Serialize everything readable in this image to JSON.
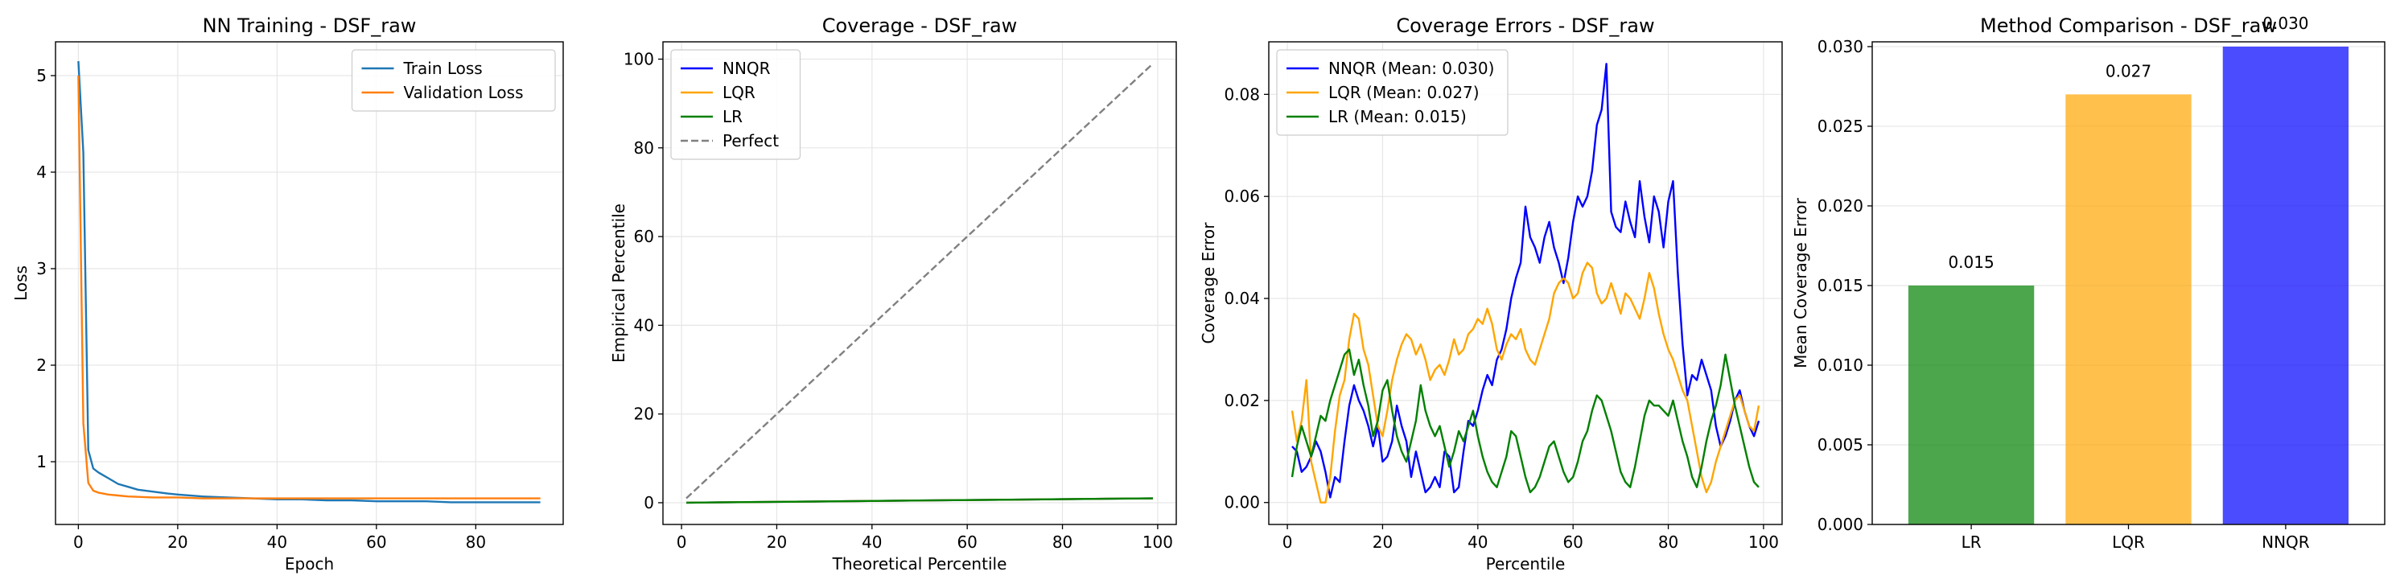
{
  "chart_data": [
    {
      "type": "line",
      "title": "NN Training - DSF_raw",
      "xlabel": "Epoch",
      "ylabel": "Loss",
      "xlim": [
        -4.6,
        97.6
      ],
      "ylim": [
        0.35,
        5.35
      ],
      "xticks": [
        0,
        20,
        40,
        60,
        80
      ],
      "yticks": [
        1,
        2,
        3,
        4,
        5
      ],
      "grid": true,
      "legend": "top-right",
      "series": [
        {
          "name": "Train Loss",
          "color": "#1f77b4",
          "x": [
            0,
            1,
            2,
            3,
            4,
            5,
            6,
            7,
            8,
            10,
            12,
            15,
            18,
            20,
            25,
            30,
            35,
            40,
            45,
            50,
            55,
            60,
            65,
            70,
            75,
            80,
            85,
            90,
            93
          ],
          "y": [
            5.15,
            4.2,
            1.12,
            0.93,
            0.89,
            0.86,
            0.83,
            0.8,
            0.77,
            0.74,
            0.71,
            0.69,
            0.67,
            0.66,
            0.64,
            0.63,
            0.62,
            0.61,
            0.61,
            0.6,
            0.6,
            0.59,
            0.59,
            0.59,
            0.58,
            0.58,
            0.58,
            0.58,
            0.58
          ]
        },
        {
          "name": "Validation Loss",
          "color": "#ff7f0e",
          "x": [
            0,
            1,
            2,
            3,
            4,
            5,
            6,
            8,
            10,
            15,
            20,
            25,
            30,
            40,
            50,
            60,
            70,
            80,
            90,
            93
          ],
          "y": [
            5.0,
            1.4,
            0.78,
            0.7,
            0.68,
            0.67,
            0.66,
            0.65,
            0.64,
            0.63,
            0.63,
            0.62,
            0.62,
            0.62,
            0.62,
            0.62,
            0.62,
            0.62,
            0.62,
            0.62
          ]
        }
      ]
    },
    {
      "type": "line",
      "title": "Coverage - DSF_raw",
      "xlabel": "Theoretical Percentile",
      "ylabel": "Empirical Percentile",
      "xlim": [
        -3.9,
        103.9
      ],
      "ylim": [
        -4.9,
        103.9
      ],
      "xticks": [
        0,
        20,
        40,
        60,
        80,
        100
      ],
      "yticks": [
        0,
        20,
        40,
        60,
        80,
        100
      ],
      "grid": true,
      "legend": "top-left",
      "series": [
        {
          "name": "NNQR",
          "color": "#0000ff",
          "dash": false,
          "x": [
            1,
            99
          ],
          "y": [
            0.01,
            0.99
          ]
        },
        {
          "name": "LQR",
          "color": "#ffa500",
          "dash": false,
          "x": [
            1,
            99
          ],
          "y": [
            0.01,
            0.99
          ]
        },
        {
          "name": "LR",
          "color": "#008000",
          "dash": false,
          "x": [
            1,
            99
          ],
          "y": [
            0.01,
            0.99
          ]
        },
        {
          "name": "Perfect",
          "color": "#808080",
          "dash": true,
          "x": [
            1,
            99
          ],
          "y": [
            1,
            99
          ]
        }
      ]
    },
    {
      "type": "line",
      "title": "Coverage Errors - DSF_raw",
      "xlabel": "Percentile",
      "ylabel": "Coverage Error",
      "xlim": [
        -3.9,
        103.9
      ],
      "ylim": [
        -0.0043,
        0.0903
      ],
      "xticks": [
        0,
        20,
        40,
        60,
        80,
        100
      ],
      "yticks": [
        0.0,
        0.02,
        0.04,
        0.06,
        0.08
      ],
      "yticklabels": [
        "0.00",
        "0.02",
        "0.04",
        "0.06",
        "0.08"
      ],
      "grid": true,
      "legend": "top-left",
      "series": [
        {
          "name": "NNQR (Mean: 0.030)",
          "color": "#0000ff",
          "x": [
            1,
            2,
            3,
            4,
            5,
            6,
            7,
            8,
            9,
            10,
            11,
            12,
            13,
            14,
            15,
            16,
            17,
            18,
            19,
            20,
            21,
            22,
            23,
            24,
            25,
            26,
            27,
            28,
            29,
            30,
            31,
            32,
            33,
            34,
            35,
            36,
            37,
            38,
            39,
            40,
            41,
            42,
            43,
            44,
            45,
            46,
            47,
            48,
            49,
            50,
            51,
            52,
            53,
            54,
            55,
            56,
            57,
            58,
            59,
            60,
            61,
            62,
            63,
            64,
            65,
            66,
            67,
            68,
            69,
            70,
            71,
            72,
            73,
            74,
            75,
            76,
            77,
            78,
            79,
            80,
            81,
            82,
            83,
            84,
            85,
            86,
            87,
            88,
            89,
            90,
            91,
            92,
            93,
            94,
            95,
            96,
            97,
            98,
            99
          ],
          "y": [
            0.011,
            0.01,
            0.006,
            0.007,
            0.009,
            0.012,
            0.01,
            0.006,
            0.001,
            0.005,
            0.004,
            0.012,
            0.019,
            0.023,
            0.02,
            0.018,
            0.015,
            0.011,
            0.015,
            0.008,
            0.009,
            0.012,
            0.019,
            0.015,
            0.012,
            0.005,
            0.01,
            0.006,
            0.002,
            0.003,
            0.005,
            0.003,
            0.01,
            0.009,
            0.002,
            0.003,
            0.01,
            0.016,
            0.015,
            0.018,
            0.022,
            0.025,
            0.023,
            0.028,
            0.03,
            0.034,
            0.04,
            0.044,
            0.047,
            0.058,
            0.052,
            0.05,
            0.047,
            0.052,
            0.055,
            0.05,
            0.047,
            0.043,
            0.048,
            0.055,
            0.06,
            0.058,
            0.06,
            0.065,
            0.074,
            0.077,
            0.086,
            0.057,
            0.054,
            0.053,
            0.059,
            0.055,
            0.052,
            0.063,
            0.056,
            0.051,
            0.06,
            0.057,
            0.05,
            0.059,
            0.063,
            0.045,
            0.031,
            0.021,
            0.025,
            0.024,
            0.028,
            0.025,
            0.022,
            0.015,
            0.011,
            0.013,
            0.016,
            0.02,
            0.022,
            0.018,
            0.015,
            0.013,
            0.016
          ]
        },
        {
          "name": "LQR (Mean: 0.027)",
          "color": "#ffa500",
          "x": [
            1,
            2,
            3,
            4,
            5,
            6,
            7,
            8,
            9,
            10,
            11,
            12,
            13,
            14,
            15,
            16,
            17,
            18,
            19,
            20,
            21,
            22,
            23,
            24,
            25,
            26,
            27,
            28,
            29,
            30,
            31,
            32,
            33,
            34,
            35,
            36,
            37,
            38,
            39,
            40,
            41,
            42,
            43,
            44,
            45,
            46,
            47,
            48,
            49,
            50,
            51,
            52,
            53,
            54,
            55,
            56,
            57,
            58,
            59,
            60,
            61,
            62,
            63,
            64,
            65,
            66,
            67,
            68,
            69,
            70,
            71,
            72,
            73,
            74,
            75,
            76,
            77,
            78,
            79,
            80,
            81,
            82,
            83,
            84,
            85,
            86,
            87,
            88,
            89,
            90,
            91,
            92,
            93,
            94,
            95,
            96,
            97,
            98,
            99
          ],
          "y": [
            0.018,
            0.012,
            0.016,
            0.024,
            0.008,
            0.004,
            0.0,
            0.0,
            0.005,
            0.014,
            0.021,
            0.024,
            0.032,
            0.037,
            0.036,
            0.03,
            0.027,
            0.021,
            0.015,
            0.013,
            0.018,
            0.024,
            0.028,
            0.031,
            0.033,
            0.032,
            0.029,
            0.031,
            0.028,
            0.024,
            0.026,
            0.027,
            0.025,
            0.028,
            0.032,
            0.029,
            0.03,
            0.033,
            0.034,
            0.036,
            0.035,
            0.038,
            0.035,
            0.03,
            0.028,
            0.031,
            0.033,
            0.032,
            0.034,
            0.03,
            0.028,
            0.027,
            0.03,
            0.033,
            0.036,
            0.041,
            0.043,
            0.044,
            0.043,
            0.04,
            0.041,
            0.045,
            0.047,
            0.046,
            0.041,
            0.039,
            0.04,
            0.043,
            0.04,
            0.037,
            0.041,
            0.04,
            0.038,
            0.036,
            0.04,
            0.045,
            0.042,
            0.037,
            0.033,
            0.03,
            0.028,
            0.025,
            0.022,
            0.02,
            0.015,
            0.01,
            0.005,
            0.002,
            0.004,
            0.008,
            0.011,
            0.014,
            0.017,
            0.02,
            0.021,
            0.018,
            0.015,
            0.014,
            0.019
          ]
        },
        {
          "name": "LR (Mean: 0.015)",
          "color": "#008000",
          "x": [
            1,
            2,
            3,
            4,
            5,
            6,
            7,
            8,
            9,
            10,
            11,
            12,
            13,
            14,
            15,
            16,
            17,
            18,
            19,
            20,
            21,
            22,
            23,
            24,
            25,
            26,
            27,
            28,
            29,
            30,
            31,
            32,
            33,
            34,
            35,
            36,
            37,
            38,
            39,
            40,
            41,
            42,
            43,
            44,
            45,
            46,
            47,
            48,
            49,
            50,
            51,
            52,
            53,
            54,
            55,
            56,
            57,
            58,
            59,
            60,
            61,
            62,
            63,
            64,
            65,
            66,
            67,
            68,
            69,
            70,
            71,
            72,
            73,
            74,
            75,
            76,
            77,
            78,
            79,
            80,
            81,
            82,
            83,
            84,
            85,
            86,
            87,
            88,
            89,
            90,
            91,
            92,
            93,
            94,
            95,
            96,
            97,
            98,
            99
          ],
          "y": [
            0.005,
            0.011,
            0.015,
            0.012,
            0.009,
            0.013,
            0.017,
            0.016,
            0.02,
            0.023,
            0.026,
            0.029,
            0.03,
            0.025,
            0.028,
            0.023,
            0.019,
            0.013,
            0.016,
            0.022,
            0.024,
            0.018,
            0.013,
            0.01,
            0.008,
            0.012,
            0.016,
            0.023,
            0.018,
            0.015,
            0.013,
            0.015,
            0.011,
            0.007,
            0.01,
            0.014,
            0.012,
            0.015,
            0.018,
            0.013,
            0.009,
            0.006,
            0.004,
            0.003,
            0.006,
            0.009,
            0.014,
            0.013,
            0.009,
            0.005,
            0.002,
            0.003,
            0.005,
            0.008,
            0.011,
            0.012,
            0.009,
            0.006,
            0.004,
            0.005,
            0.008,
            0.012,
            0.014,
            0.018,
            0.021,
            0.02,
            0.017,
            0.014,
            0.01,
            0.006,
            0.004,
            0.003,
            0.007,
            0.012,
            0.017,
            0.02,
            0.019,
            0.019,
            0.018,
            0.017,
            0.02,
            0.016,
            0.012,
            0.009,
            0.005,
            0.003,
            0.007,
            0.012,
            0.016,
            0.019,
            0.023,
            0.029,
            0.024,
            0.019,
            0.015,
            0.011,
            0.007,
            0.004,
            0.003
          ]
        }
      ]
    },
    {
      "type": "bar",
      "title": "Method Comparison - DSF_raw",
      "xlabel": "",
      "ylabel": "Mean Coverage Error",
      "categories": [
        "LR",
        "LQR",
        "NNQR"
      ],
      "values": [
        0.015,
        0.027,
        0.03
      ],
      "data_labels": [
        "0.015",
        "0.027",
        "0.030"
      ],
      "colors": [
        "#008000",
        "#ffa500",
        "#0000ff"
      ],
      "ylim": [
        0.0,
        0.0303
      ],
      "yticks": [
        0.0,
        0.005,
        0.01,
        0.015,
        0.02,
        0.025,
        0.03
      ],
      "yticklabels": [
        "0.000",
        "0.005",
        "0.010",
        "0.015",
        "0.020",
        "0.025",
        "0.030"
      ],
      "grid": true,
      "legend": "none"
    }
  ]
}
